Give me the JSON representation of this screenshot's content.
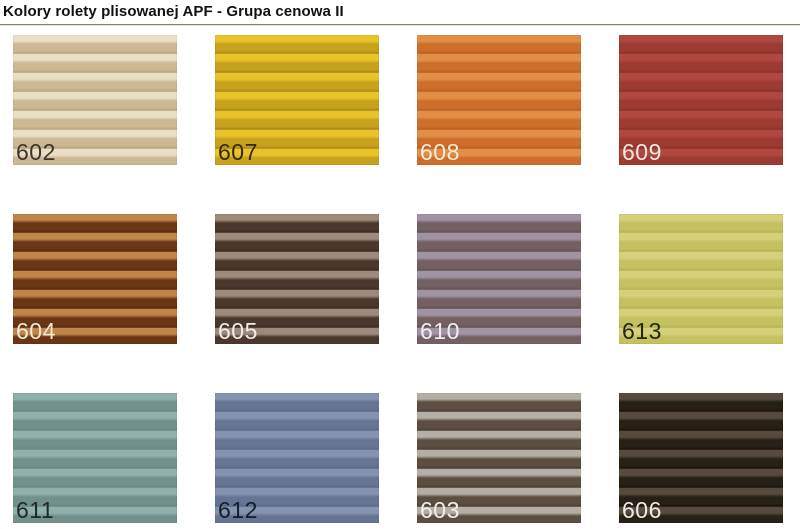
{
  "page": {
    "title": "Kolory rolety plisowanej APF - Grupa cenowa II",
    "divider_color_top": "#7d8d68",
    "divider_color_bottom": "#dfe3d6",
    "background": "#ffffff"
  },
  "swatches": [
    {
      "label": "602",
      "light": "#e9dfc6",
      "dark": "#cdb894",
      "edge": "#b9a27a",
      "label_color": "#39362c"
    },
    {
      "label": "607",
      "light": "#e8c32a",
      "dark": "#c7a21c",
      "edge": "#a8871b",
      "label_color": "#352a0b"
    },
    {
      "label": "608",
      "light": "#e28f45",
      "dark": "#ce6e2b",
      "edge": "#b95e24",
      "label_color": "#f4ecd9"
    },
    {
      "label": "609",
      "light": "#b04840",
      "dark": "#9d3a31",
      "edge": "#8c3129",
      "label_color": "#f3e8df"
    },
    {
      "label": "604",
      "light": "#c08548",
      "dark": "#6b3615",
      "edge": "#57290e",
      "label_color": "#f2e9d5"
    },
    {
      "label": "605",
      "light": "#9c8a7a",
      "dark": "#4c372c",
      "edge": "#3b2a21",
      "label_color": "#f0ece6"
    },
    {
      "label": "610",
      "light": "#9f93a4",
      "dark": "#746062",
      "edge": "#645155",
      "label_color": "#f0edf0"
    },
    {
      "label": "613",
      "light": "#d5d07a",
      "dark": "#c6c160",
      "edge": "#b6b051",
      "label_color": "#26260f"
    },
    {
      "label": "611",
      "light": "#8fb0ab",
      "dark": "#72918d",
      "edge": "#678683",
      "label_color": "#1d2a28"
    },
    {
      "label": "612",
      "light": "#8494b0",
      "dark": "#657593",
      "edge": "#596a87",
      "label_color": "#171d2c"
    },
    {
      "label": "603",
      "light": "#b3aea6",
      "dark": "#5c4e42",
      "edge": "#4a3e33",
      "label_color": "#f2efe9"
    },
    {
      "label": "606",
      "light": "#564b3e",
      "dark": "#272016",
      "edge": "#1a140c",
      "label_color": "#eeeae2"
    }
  ]
}
